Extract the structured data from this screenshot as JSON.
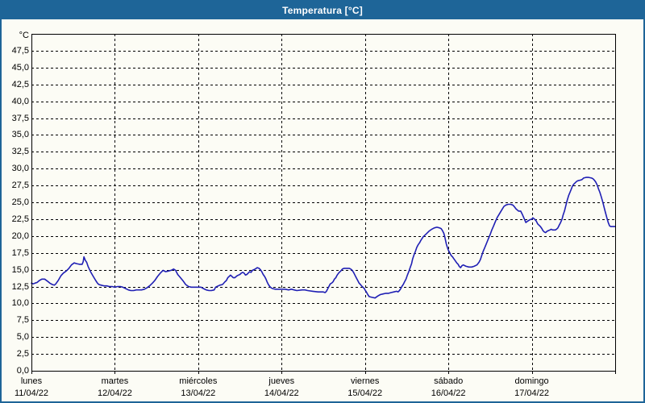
{
  "title": "Temperatura [°C]",
  "colors": {
    "frame_blue": "#1e6598",
    "background": "#fcfcf5",
    "grid": "#000000",
    "text": "#000000",
    "line": "#1f1fb4"
  },
  "chart_data": {
    "type": "line",
    "title": "Temperatura [°C]",
    "y_unit": "°C",
    "ylim": [
      0,
      50
    ],
    "xlim_hours": [
      0,
      168
    ],
    "grid": "dashed",
    "y_tick_step": 2.5,
    "y_tick_labels": [
      "0,0",
      "2,5",
      "5,0",
      "7,5",
      "10,0",
      "12,5",
      "15,0",
      "17,5",
      "20,0",
      "22,5",
      "25,0",
      "27,5",
      "30,0",
      "32,5",
      "35,0",
      "37,5",
      "40,0",
      "42,5",
      "45,0",
      "47,5"
    ],
    "y_tick_values": [
      0,
      2.5,
      5,
      7.5,
      10,
      12.5,
      15,
      17.5,
      20,
      22.5,
      25,
      27.5,
      30,
      32.5,
      35,
      37.5,
      40,
      42.5,
      45,
      47.5
    ],
    "x_days": [
      {
        "label": "lunes",
        "date": "11/04/22"
      },
      {
        "label": "martes",
        "date": "12/04/22"
      },
      {
        "label": "miércoles",
        "date": "13/04/22"
      },
      {
        "label": "jueves",
        "date": "14/04/22"
      },
      {
        "label": "viernes",
        "date": "15/04/22"
      },
      {
        "label": "sábado",
        "date": "16/04/22"
      },
      {
        "label": "domingo",
        "date": "17/04/22"
      }
    ],
    "series": [
      {
        "name": "Temperatura",
        "color": "#1f1fb4",
        "points": [
          [
            0,
            13.0
          ],
          [
            0.5,
            12.9
          ],
          [
            1,
            13.0
          ],
          [
            1.6,
            13.1
          ],
          [
            2.3,
            13.4
          ],
          [
            3,
            13.6
          ],
          [
            3.8,
            13.6
          ],
          [
            4.6,
            13.3
          ],
          [
            5.3,
            13.0
          ],
          [
            6,
            12.8
          ],
          [
            6.6,
            12.7
          ],
          [
            7,
            12.9
          ],
          [
            7.7,
            13.4
          ],
          [
            8.5,
            14.1
          ],
          [
            9.2,
            14.5
          ],
          [
            10,
            14.8
          ],
          [
            10.8,
            15.2
          ],
          [
            11.5,
            15.7
          ],
          [
            12.3,
            16.0
          ],
          [
            13,
            15.9
          ],
          [
            13.8,
            15.8
          ],
          [
            14.6,
            15.8
          ],
          [
            14.9,
            16.2
          ],
          [
            15.1,
            16.9
          ],
          [
            15.5,
            16.4
          ],
          [
            15.9,
            16.1
          ],
          [
            16.3,
            15.5
          ],
          [
            17,
            14.7
          ],
          [
            17.8,
            14.0
          ],
          [
            18.5,
            13.4
          ],
          [
            19,
            13.0
          ],
          [
            19.4,
            12.8
          ],
          [
            20.1,
            12.7
          ],
          [
            20.9,
            12.6
          ],
          [
            21.7,
            12.6
          ],
          [
            22.4,
            12.5
          ],
          [
            23.2,
            12.5
          ],
          [
            24,
            12.4
          ],
          [
            24.8,
            12.5
          ],
          [
            25.6,
            12.5
          ],
          [
            26.3,
            12.4
          ],
          [
            27.1,
            12.2
          ],
          [
            27.9,
            12.0
          ],
          [
            28.6,
            11.9
          ],
          [
            29.4,
            11.9
          ],
          [
            30.2,
            12.0
          ],
          [
            31.7,
            12.0
          ],
          [
            32.5,
            12.1
          ],
          [
            33.2,
            12.3
          ],
          [
            34,
            12.6
          ],
          [
            34.8,
            13.0
          ],
          [
            35.5,
            13.4
          ],
          [
            36.3,
            14.0
          ],
          [
            37.1,
            14.5
          ],
          [
            37.5,
            14.7
          ],
          [
            37.9,
            14.9
          ],
          [
            38.6,
            14.7
          ],
          [
            39.4,
            14.8
          ],
          [
            40.2,
            14.9
          ],
          [
            40.9,
            15.1
          ],
          [
            41.5,
            14.9
          ],
          [
            42.1,
            14.3
          ],
          [
            42.9,
            13.8
          ],
          [
            43.7,
            13.3
          ],
          [
            44.4,
            12.8
          ],
          [
            45.2,
            12.5
          ],
          [
            46,
            12.4
          ],
          [
            47,
            12.4
          ],
          [
            48,
            12.4
          ],
          [
            48.8,
            12.4
          ],
          [
            49.5,
            12.2
          ],
          [
            50.3,
            12.0
          ],
          [
            51.1,
            11.9
          ],
          [
            51.8,
            11.9
          ],
          [
            52.6,
            12.0
          ],
          [
            53,
            12.4
          ],
          [
            53.4,
            12.5
          ],
          [
            54.2,
            12.7
          ],
          [
            55,
            12.8
          ],
          [
            55.7,
            13.2
          ],
          [
            56.1,
            13.4
          ],
          [
            56.5,
            13.8
          ],
          [
            56.9,
            14.0
          ],
          [
            57.3,
            14.2
          ],
          [
            57.7,
            14.0
          ],
          [
            58.1,
            13.8
          ],
          [
            58.5,
            13.8
          ],
          [
            59.2,
            14.1
          ],
          [
            59.6,
            14.2
          ],
          [
            60,
            14.3
          ],
          [
            60.4,
            14.5
          ],
          [
            60.8,
            14.6
          ],
          [
            61.2,
            14.5
          ],
          [
            61.6,
            14.2
          ],
          [
            62,
            14.3
          ],
          [
            62.4,
            14.5
          ],
          [
            62.8,
            14.7
          ],
          [
            63.2,
            14.6
          ],
          [
            63.6,
            14.9
          ],
          [
            64,
            15.0
          ],
          [
            64.4,
            15.1
          ],
          [
            65,
            15.3
          ],
          [
            65.5,
            15.2
          ],
          [
            65.9,
            15.0
          ],
          [
            66.3,
            14.7
          ],
          [
            66.7,
            14.3
          ],
          [
            67.1,
            14.0
          ],
          [
            67.5,
            13.6
          ],
          [
            67.8,
            13.2
          ],
          [
            68.2,
            12.8
          ],
          [
            68.6,
            12.5
          ],
          [
            69,
            12.3
          ],
          [
            69.4,
            12.2
          ],
          [
            70.2,
            12.1
          ],
          [
            71,
            12.1
          ],
          [
            72,
            12.1
          ],
          [
            73,
            12.1
          ],
          [
            74,
            12.0
          ],
          [
            74.8,
            12.1
          ],
          [
            75.6,
            12.0
          ],
          [
            76.4,
            11.9
          ],
          [
            77.9,
            12.0
          ],
          [
            78.7,
            12.0
          ],
          [
            79.5,
            11.9
          ],
          [
            81,
            11.8
          ],
          [
            82.5,
            11.7
          ],
          [
            84,
            11.7
          ],
          [
            84.5,
            11.6
          ],
          [
            84.9,
            11.8
          ],
          [
            85.3,
            12.2
          ],
          [
            85.7,
            12.6
          ],
          [
            86,
            12.9
          ],
          [
            86.4,
            13.0
          ],
          [
            86.8,
            13.2
          ],
          [
            87.2,
            13.6
          ],
          [
            87.6,
            13.8
          ],
          [
            88,
            14.2
          ],
          [
            88.4,
            14.5
          ],
          [
            88.8,
            14.7
          ],
          [
            89.2,
            14.9
          ],
          [
            89.5,
            15.1
          ],
          [
            90,
            15.2
          ],
          [
            91,
            15.2
          ],
          [
            91.5,
            15.2
          ],
          [
            91.9,
            15.1
          ],
          [
            92.3,
            14.9
          ],
          [
            92.7,
            14.6
          ],
          [
            93.1,
            14.2
          ],
          [
            93.5,
            13.8
          ],
          [
            93.9,
            13.4
          ],
          [
            94.3,
            13.0
          ],
          [
            94.7,
            12.8
          ],
          [
            95,
            12.6
          ],
          [
            95.4,
            12.4
          ],
          [
            95.8,
            12.2
          ],
          [
            96,
            12.0
          ],
          [
            96.4,
            11.7
          ],
          [
            96.8,
            11.3
          ],
          [
            97.2,
            11.0
          ],
          [
            98,
            10.9
          ],
          [
            98.9,
            10.8
          ],
          [
            99.7,
            11.1
          ],
          [
            100.4,
            11.3
          ],
          [
            101.2,
            11.4
          ],
          [
            102,
            11.5
          ],
          [
            102.8,
            11.5
          ],
          [
            103.5,
            11.6
          ],
          [
            104.3,
            11.7
          ],
          [
            105.1,
            11.8
          ],
          [
            105.5,
            11.7
          ],
          [
            105.9,
            11.9
          ],
          [
            106.3,
            12.2
          ],
          [
            106.6,
            12.5
          ],
          [
            107,
            12.8
          ],
          [
            107.4,
            13.2
          ],
          [
            107.8,
            13.6
          ],
          [
            108.2,
            14.2
          ],
          [
            108.6,
            14.7
          ],
          [
            109,
            15.3
          ],
          [
            109.4,
            15.9
          ],
          [
            109.7,
            16.6
          ],
          [
            110.1,
            17.2
          ],
          [
            110.5,
            17.7
          ],
          [
            110.9,
            18.3
          ],
          [
            111.3,
            18.7
          ],
          [
            111.7,
            19.0
          ],
          [
            112,
            19.3
          ],
          [
            112.4,
            19.6
          ],
          [
            112.8,
            19.9
          ],
          [
            113.6,
            20.3
          ],
          [
            114.4,
            20.7
          ],
          [
            115.2,
            21.0
          ],
          [
            115.9,
            21.2
          ],
          [
            116.7,
            21.3
          ],
          [
            117.5,
            21.2
          ],
          [
            117.9,
            21.1
          ],
          [
            118.3,
            20.8
          ],
          [
            118.7,
            20.4
          ],
          [
            119,
            19.8
          ],
          [
            119.4,
            18.8
          ],
          [
            119.7,
            18.3
          ],
          [
            120,
            17.9
          ],
          [
            120.4,
            17.5
          ],
          [
            120.8,
            17.1
          ],
          [
            121.2,
            16.9
          ],
          [
            121.6,
            16.6
          ],
          [
            122,
            16.3
          ],
          [
            122.4,
            16.0
          ],
          [
            122.8,
            15.8
          ],
          [
            123.1,
            15.5
          ],
          [
            123.5,
            15.3
          ],
          [
            123.9,
            15.6
          ],
          [
            124.3,
            15.7
          ],
          [
            124.7,
            15.6
          ],
          [
            125.1,
            15.5
          ],
          [
            125.9,
            15.4
          ],
          [
            126.7,
            15.4
          ],
          [
            127.4,
            15.5
          ],
          [
            128.2,
            15.7
          ],
          [
            128.8,
            16.1
          ],
          [
            129.2,
            16.5
          ],
          [
            129.6,
            17.1
          ],
          [
            130,
            17.7
          ],
          [
            130.4,
            18.2
          ],
          [
            130.8,
            18.7
          ],
          [
            131.2,
            19.2
          ],
          [
            131.6,
            19.7
          ],
          [
            132,
            20.2
          ],
          [
            132.5,
            20.9
          ],
          [
            133,
            21.5
          ],
          [
            133.5,
            22.1
          ],
          [
            134,
            22.7
          ],
          [
            134.7,
            23.3
          ],
          [
            135.4,
            23.9
          ],
          [
            136,
            24.4
          ],
          [
            136.6,
            24.6
          ],
          [
            137.2,
            24.7
          ],
          [
            137.9,
            24.7
          ],
          [
            138.5,
            24.6
          ],
          [
            138.9,
            24.4
          ],
          [
            139.5,
            24.0
          ],
          [
            140.2,
            23.7
          ],
          [
            140.8,
            23.7
          ],
          [
            141.2,
            23.3
          ],
          [
            141.7,
            22.7
          ],
          [
            142.3,
            22.0
          ],
          [
            142.8,
            22.2
          ],
          [
            143.4,
            22.4
          ],
          [
            144,
            22.5
          ],
          [
            144.3,
            22.7
          ],
          [
            144.8,
            22.5
          ],
          [
            145.3,
            22.2
          ],
          [
            145.7,
            21.8
          ],
          [
            146.1,
            21.6
          ],
          [
            146.5,
            21.4
          ],
          [
            146.9,
            21.1
          ],
          [
            147.2,
            20.8
          ],
          [
            147.6,
            20.6
          ],
          [
            148,
            20.5
          ],
          [
            148.4,
            20.7
          ],
          [
            148.8,
            20.8
          ],
          [
            149.2,
            20.9
          ],
          [
            149.6,
            21.0
          ],
          [
            150,
            20.9
          ],
          [
            150.8,
            20.9
          ],
          [
            151.1,
            21.0
          ],
          [
            151.5,
            21.2
          ],
          [
            151.9,
            21.6
          ],
          [
            152.3,
            22.0
          ],
          [
            152.7,
            22.5
          ],
          [
            153,
            23.1
          ],
          [
            153.4,
            23.7
          ],
          [
            153.8,
            24.5
          ],
          [
            154.2,
            25.3
          ],
          [
            154.6,
            26.0
          ],
          [
            155,
            26.5
          ],
          [
            155.4,
            27.0
          ],
          [
            155.7,
            27.4
          ],
          [
            156.1,
            27.7
          ],
          [
            156.5,
            27.9
          ],
          [
            156.9,
            28.1
          ],
          [
            157.3,
            28.2
          ],
          [
            158.1,
            28.3
          ],
          [
            158.5,
            28.4
          ],
          [
            158.9,
            28.6
          ],
          [
            159.6,
            28.7
          ],
          [
            160.4,
            28.7
          ],
          [
            161.2,
            28.6
          ],
          [
            161.6,
            28.5
          ],
          [
            162,
            28.3
          ],
          [
            162.4,
            28.0
          ],
          [
            162.8,
            27.6
          ],
          [
            163.2,
            27.0
          ],
          [
            163.6,
            26.5
          ],
          [
            164,
            25.8
          ],
          [
            164.4,
            25.1
          ],
          [
            164.8,
            24.3
          ],
          [
            165.2,
            23.5
          ],
          [
            165.6,
            22.7
          ],
          [
            166,
            22.0
          ],
          [
            166.4,
            21.5
          ],
          [
            166.8,
            21.4
          ],
          [
            167.4,
            21.4
          ],
          [
            168,
            21.4
          ]
        ]
      }
    ]
  }
}
